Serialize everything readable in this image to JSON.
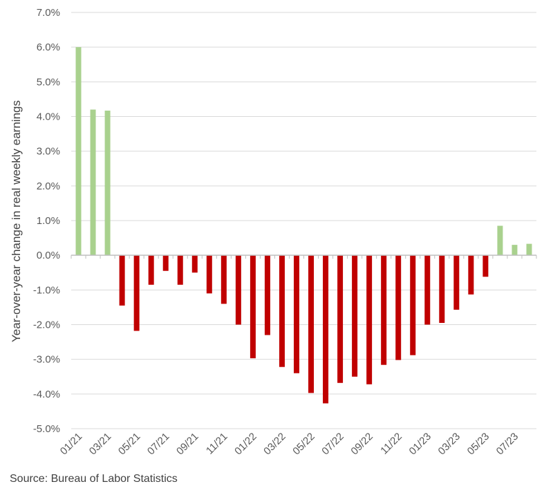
{
  "chart_data": {
    "type": "bar",
    "title": "",
    "ylabel": "Year-over-year change in real weekly earnings",
    "xlabel": "",
    "ylim": [
      -5.0,
      7.0
    ],
    "y_tick_step": 1.0,
    "y_tick_format": "percent_1dp",
    "grid": true,
    "colors": {
      "positive": "#a9d18e",
      "negative": "#c00000",
      "grid": "#d9d9d9",
      "axis": "#bfbfbf"
    },
    "categories": [
      "01/21",
      "02/21",
      "03/21",
      "04/21",
      "05/21",
      "06/21",
      "07/21",
      "08/21",
      "09/21",
      "10/21",
      "11/21",
      "12/21",
      "01/22",
      "02/22",
      "03/22",
      "04/22",
      "05/22",
      "06/22",
      "07/22",
      "08/22",
      "09/22",
      "10/22",
      "11/22",
      "12/22",
      "01/23",
      "02/23",
      "03/23",
      "04/23",
      "05/23",
      "06/23",
      "07/23",
      "08/23"
    ],
    "x_tick_labels": [
      "01/21",
      "",
      "03/21",
      "",
      "05/21",
      "",
      "07/21",
      "",
      "09/21",
      "",
      "11/21",
      "",
      "01/22",
      "",
      "03/22",
      "",
      "05/22",
      "",
      "07/22",
      "",
      "09/22",
      "",
      "11/22",
      "",
      "01/23",
      "",
      "03/23",
      "",
      "05/23",
      "",
      "07/23",
      ""
    ],
    "values": [
      6.0,
      4.2,
      4.17,
      -1.45,
      -2.18,
      -0.85,
      -0.45,
      -0.85,
      -0.5,
      -1.1,
      -1.4,
      -2.0,
      -2.97,
      -2.3,
      -3.22,
      -3.4,
      -3.97,
      -4.27,
      -3.68,
      -3.5,
      -3.72,
      -3.16,
      -3.02,
      -2.88,
      -2.0,
      -1.95,
      -1.57,
      -1.13,
      -0.62,
      0.85,
      0.3,
      0.33
    ]
  },
  "source_note": "Source: Bureau of Labor Statistics"
}
